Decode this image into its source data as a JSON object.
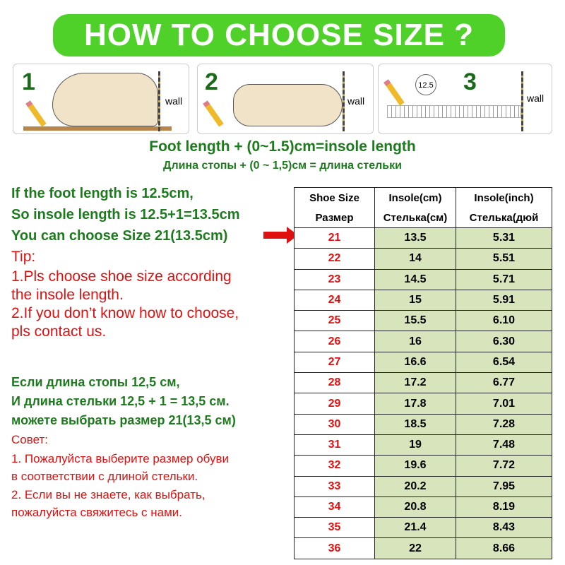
{
  "title": "HOW TO CHOOSE SIZE ?",
  "steps": [
    {
      "number": "1",
      "wall": "wall"
    },
    {
      "number": "2",
      "wall": "wall"
    },
    {
      "number": "3",
      "wall": "wall",
      "reading": "12.5"
    }
  ],
  "formula_en": "Foot length + (0~1.5)cm=insole length",
  "formula_ru": "Длина стопы + (0 ~ 1,5)см = длина стельки",
  "example_en": [
    "If the foot length is 12.5cm,",
    "So insole length is 12.5+1=13.5cm",
    "You can choose Size 21(13.5cm)"
  ],
  "tip_en": [
    "Tip:",
    "1.Pls choose shoe size according",
    " the insole length.",
    "2.If you don’t know how to choose,",
    "pls contact us."
  ],
  "example_ru": [
    "Если длина стопы 12,5 см,",
    "И длина стельки 12,5 + 1 = 13,5 см.",
    "можете выбрать размер 21(13,5 см)"
  ],
  "tip_ru": [
    "Совет:",
    "1. Пожалуйста выберите размер обуви",
    "в соответствии с длиной стельки.",
    "2. Если вы не знаете, как выбрать,",
    "пожалуйста свяжитесь с нами."
  ],
  "table": {
    "headers": [
      [
        "Shoe Size",
        "Insole(cm)",
        "Insole(inch)"
      ],
      [
        "Размер",
        "Стелька(см)",
        "Стелька(дюй"
      ]
    ],
    "rows": [
      [
        "21",
        "13.5",
        "5.31"
      ],
      [
        "22",
        "14",
        "5.51"
      ],
      [
        "23",
        "14.5",
        "5.71"
      ],
      [
        "24",
        "15",
        "5.91"
      ],
      [
        "25",
        "15.5",
        "6.10"
      ],
      [
        "26",
        "16",
        "6.30"
      ],
      [
        "27",
        "16.6",
        "6.54"
      ],
      [
        "28",
        "17.2",
        "6.77"
      ],
      [
        "29",
        "17.8",
        "7.01"
      ],
      [
        "30",
        "18.5",
        "7.28"
      ],
      [
        "31",
        "19",
        "7.48"
      ],
      [
        "32",
        "19.6",
        "7.72"
      ],
      [
        "33",
        "20.2",
        "7.95"
      ],
      [
        "34",
        "20.8",
        "8.19"
      ],
      [
        "35",
        "21.4",
        "8.43"
      ],
      [
        "36",
        "22",
        "8.66"
      ]
    ]
  },
  "colors": {
    "banner": "#4fd12a",
    "green_text": "#1e7a1e",
    "red_text": "#e01010",
    "table_fill": "#d8e4bc"
  }
}
